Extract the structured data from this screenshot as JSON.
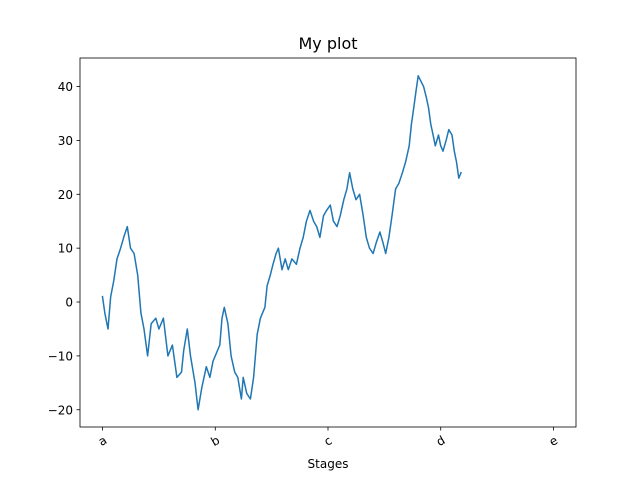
{
  "chart_data": {
    "type": "line",
    "title": "My plot",
    "xlabel": "Stages",
    "ylabel": "",
    "xlim": [
      -50,
      1050
    ],
    "ylim": [
      -23.2,
      45.3
    ],
    "xticks": [
      {
        "value": 0,
        "label": "a"
      },
      {
        "value": 250,
        "label": "b"
      },
      {
        "value": 500,
        "label": "c"
      },
      {
        "value": 750,
        "label": "d"
      },
      {
        "value": 1000,
        "label": "e"
      }
    ],
    "yticks": [
      -20,
      -10,
      0,
      10,
      20,
      30,
      40
    ],
    "grid": false,
    "series": [
      {
        "color": "#1f77b4",
        "points": [
          [
            0,
            1
          ],
          [
            5,
            -2
          ],
          [
            12,
            -5
          ],
          [
            18,
            1
          ],
          [
            25,
            4
          ],
          [
            32,
            8
          ],
          [
            40,
            10
          ],
          [
            47,
            12
          ],
          [
            55,
            14
          ],
          [
            62,
            10
          ],
          [
            70,
            9
          ],
          [
            78,
            5
          ],
          [
            85,
            -2
          ],
          [
            92,
            -5
          ],
          [
            100,
            -10
          ],
          [
            108,
            -4
          ],
          [
            118,
            -3
          ],
          [
            125,
            -5
          ],
          [
            135,
            -3
          ],
          [
            145,
            -10
          ],
          [
            155,
            -8
          ],
          [
            165,
            -14
          ],
          [
            175,
            -13
          ],
          [
            180,
            -9
          ],
          [
            188,
            -5
          ],
          [
            195,
            -10
          ],
          [
            205,
            -15
          ],
          [
            212,
            -20
          ],
          [
            220,
            -16
          ],
          [
            230,
            -12
          ],
          [
            238,
            -14
          ],
          [
            245,
            -11
          ],
          [
            255,
            -9
          ],
          [
            260,
            -8
          ],
          [
            265,
            -3
          ],
          [
            270,
            -1
          ],
          [
            278,
            -4
          ],
          [
            285,
            -10
          ],
          [
            293,
            -13
          ],
          [
            300,
            -14
          ],
          [
            308,
            -18
          ],
          [
            312,
            -14
          ],
          [
            320,
            -17
          ],
          [
            328,
            -18
          ],
          [
            335,
            -14
          ],
          [
            343,
            -6
          ],
          [
            350,
            -3
          ],
          [
            355,
            -2
          ],
          [
            360,
            -1
          ],
          [
            365,
            3
          ],
          [
            372,
            5
          ],
          [
            378,
            7
          ],
          [
            385,
            9
          ],
          [
            390,
            10
          ],
          [
            398,
            6
          ],
          [
            405,
            8
          ],
          [
            412,
            6
          ],
          [
            420,
            8
          ],
          [
            430,
            7
          ],
          [
            438,
            10
          ],
          [
            445,
            12
          ],
          [
            452,
            15
          ],
          [
            460,
            17
          ],
          [
            468,
            15
          ],
          [
            475,
            14
          ],
          [
            482,
            12
          ],
          [
            490,
            16
          ],
          [
            497,
            17
          ],
          [
            505,
            18
          ],
          [
            512,
            15
          ],
          [
            520,
            14
          ],
          [
            527,
            16
          ],
          [
            535,
            19
          ],
          [
            542,
            21
          ],
          [
            548,
            24
          ],
          [
            555,
            21
          ],
          [
            562,
            19
          ],
          [
            570,
            20
          ],
          [
            578,
            16
          ],
          [
            585,
            12
          ],
          [
            592,
            10
          ],
          [
            600,
            9
          ],
          [
            607,
            11
          ],
          [
            615,
            13
          ],
          [
            622,
            11
          ],
          [
            628,
            9
          ],
          [
            635,
            12
          ],
          [
            642,
            16
          ],
          [
            650,
            21
          ],
          [
            657,
            22
          ],
          [
            665,
            24
          ],
          [
            672,
            26
          ],
          [
            680,
            29
          ],
          [
            685,
            33
          ],
          [
            690,
            36
          ],
          [
            695,
            39
          ],
          [
            700,
            42
          ],
          [
            706,
            41
          ],
          [
            712,
            40
          ],
          [
            718,
            38
          ],
          [
            723,
            36
          ],
          [
            728,
            33
          ],
          [
            733,
            31
          ],
          [
            738,
            29
          ],
          [
            745,
            31
          ],
          [
            750,
            29
          ],
          [
            755,
            28
          ],
          [
            762,
            30
          ],
          [
            768,
            32
          ],
          [
            775,
            31
          ],
          [
            780,
            28
          ],
          [
            785,
            26
          ],
          [
            790,
            23
          ],
          [
            795,
            24
          ]
        ]
      }
    ]
  }
}
